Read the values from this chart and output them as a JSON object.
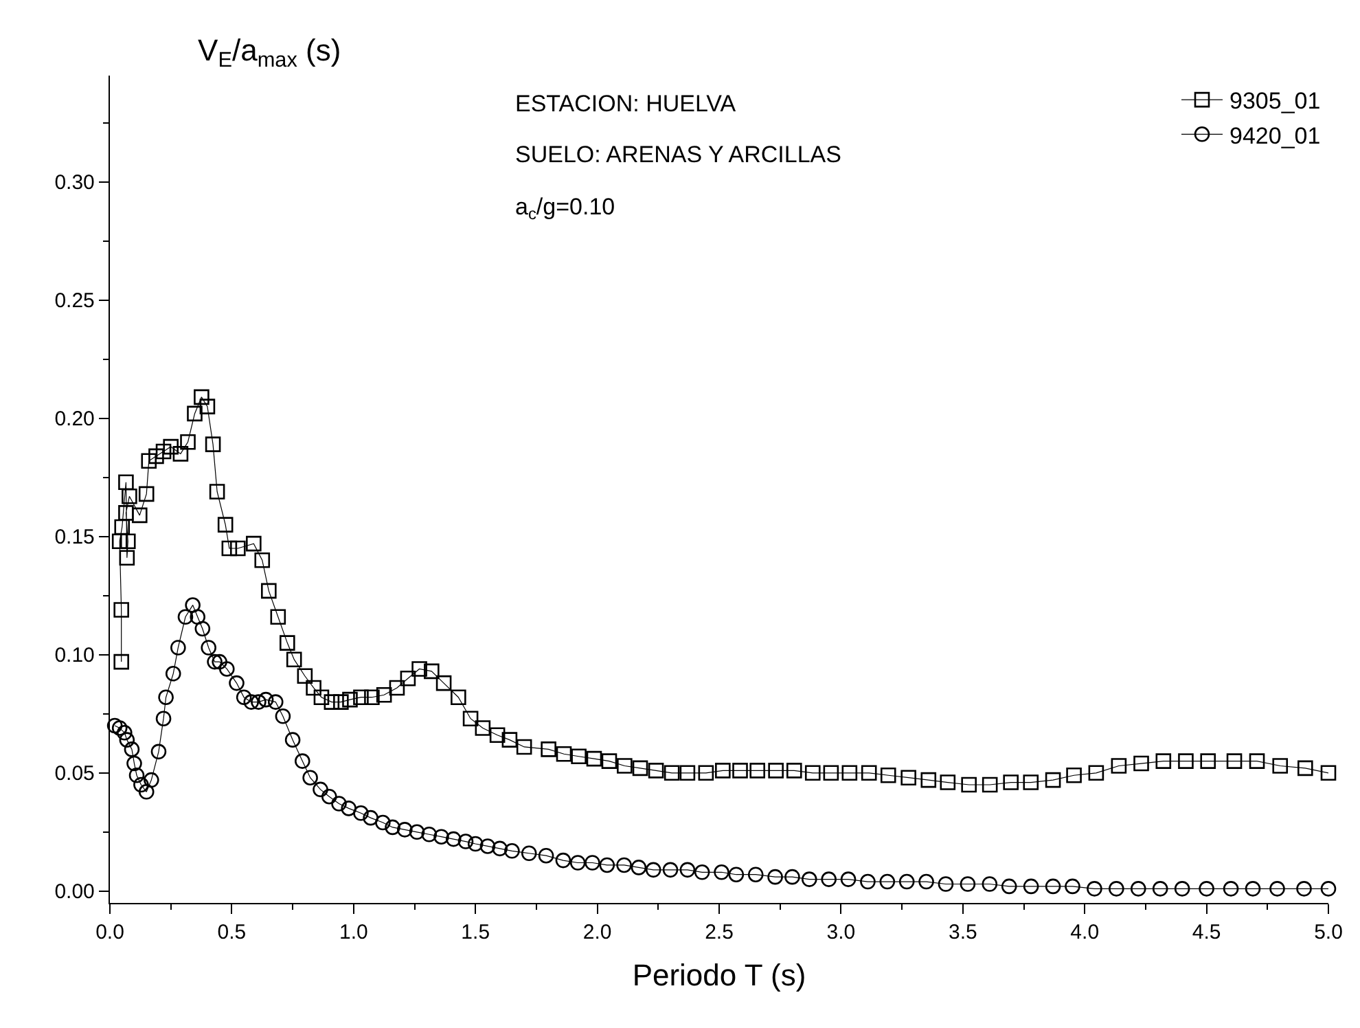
{
  "chart_data": {
    "type": "line",
    "xlabel": "Periodo T (s)",
    "ylabel": "V$_{E}$/a$_{max}$ (s)",
    "annotations": [
      "ESTACION: HUELVA",
      "SUELO: ARENAS Y ARCILLAS",
      "a$_{c}$/g=0.10"
    ],
    "xlim": [
      0,
      5.0
    ],
    "xticks": [
      {
        "value": 0,
        "label": "0.0"
      },
      0.5,
      {
        "value": 1,
        "label": "1.0"
      },
      1.5,
      {
        "value": 2,
        "label": "2.0"
      },
      2.5,
      {
        "value": 3,
        "label": "3.0"
      },
      3.5,
      {
        "value": 4,
        "label": "4.0"
      },
      4.5,
      {
        "value": 5,
        "label": "5.0"
      }
    ],
    "ylim": [
      -0.005,
      0.345
    ],
    "yticks": [
      {
        "value": 0,
        "label": "0.00"
      },
      0.05,
      {
        "value": 0.1,
        "label": "0.10"
      },
      0.15,
      {
        "value": 0.2,
        "label": "0.20"
      },
      0.25,
      {
        "value": 0.3,
        "label": "0.30"
      }
    ],
    "legend": "top right",
    "line_style": "solid",
    "series": [
      {
        "name": "9305_01",
        "color": "#000000",
        "marker": "square",
        "x": [
          0.047,
          0.047,
          0.04,
          0.05,
          0.066,
          0.07,
          0.074,
          0.066,
          0.08,
          0.122,
          0.15,
          0.16,
          0.19,
          0.22,
          0.25,
          0.29,
          0.32,
          0.348,
          0.376,
          0.4,
          0.423,
          0.44,
          0.474,
          0.49,
          0.525,
          0.59,
          0.625,
          0.652,
          0.69,
          0.728,
          0.756,
          0.8,
          0.836,
          0.868,
          0.91,
          0.948,
          0.985,
          1.03,
          1.075,
          1.125,
          1.178,
          1.223,
          1.27,
          1.32,
          1.37,
          1.43,
          1.48,
          1.53,
          1.59,
          1.64,
          1.7,
          1.8,
          1.863,
          1.924,
          1.987,
          2.049,
          2.112,
          2.176,
          2.241,
          2.306,
          2.37,
          2.446,
          2.515,
          2.586,
          2.657,
          2.733,
          2.808,
          2.884,
          2.959,
          3.035,
          3.115,
          3.194,
          3.277,
          3.359,
          3.438,
          3.525,
          3.611,
          3.697,
          3.779,
          3.87,
          3.956,
          4.047,
          4.14,
          4.232,
          4.323,
          4.415,
          4.506,
          4.614,
          4.707,
          4.802,
          4.905,
          5.0
        ],
        "values": [
          0.097,
          0.119,
          0.148,
          0.154,
          0.173,
          0.141,
          0.148,
          0.16,
          0.167,
          0.159,
          0.168,
          0.182,
          0.184,
          0.186,
          0.188,
          0.185,
          0.19,
          0.202,
          0.209,
          0.205,
          0.189,
          0.169,
          0.155,
          0.145,
          0.145,
          0.147,
          0.14,
          0.127,
          0.116,
          0.105,
          0.098,
          0.091,
          0.086,
          0.082,
          0.08,
          0.08,
          0.081,
          0.082,
          0.082,
          0.083,
          0.086,
          0.09,
          0.094,
          0.093,
          0.088,
          0.082,
          0.073,
          0.069,
          0.066,
          0.064,
          0.061,
          0.06,
          0.058,
          0.057,
          0.056,
          0.055,
          0.053,
          0.052,
          0.051,
          0.05,
          0.05,
          0.05,
          0.051,
          0.051,
          0.051,
          0.051,
          0.051,
          0.05,
          0.05,
          0.05,
          0.05,
          0.049,
          0.048,
          0.047,
          0.046,
          0.045,
          0.045,
          0.046,
          0.046,
          0.047,
          0.049,
          0.05,
          0.053,
          0.054,
          0.055,
          0.055,
          0.055,
          0.055,
          0.055,
          0.053,
          0.052,
          0.05
        ]
      },
      {
        "name": "9420_01",
        "color": "#000000",
        "marker": "circle",
        "x": [
          0.02,
          0.04,
          0.06,
          0.07,
          0.09,
          0.1,
          0.11,
          0.128,
          0.15,
          0.17,
          0.2,
          0.22,
          0.23,
          0.26,
          0.28,
          0.31,
          0.34,
          0.36,
          0.38,
          0.405,
          0.43,
          0.45,
          0.48,
          0.52,
          0.55,
          0.58,
          0.61,
          0.64,
          0.68,
          0.71,
          0.75,
          0.79,
          0.822,
          0.864,
          0.9,
          0.94,
          0.98,
          1.03,
          1.07,
          1.12,
          1.16,
          1.21,
          1.26,
          1.31,
          1.36,
          1.41,
          1.46,
          1.5,
          1.55,
          1.6,
          1.65,
          1.72,
          1.79,
          1.86,
          1.92,
          1.98,
          2.04,
          2.11,
          2.17,
          2.23,
          2.3,
          2.37,
          2.43,
          2.51,
          2.57,
          2.65,
          2.73,
          2.8,
          2.87,
          2.95,
          3.03,
          3.11,
          3.19,
          3.27,
          3.35,
          3.43,
          3.52,
          3.61,
          3.69,
          3.78,
          3.87,
          3.95,
          4.04,
          4.13,
          4.22,
          4.31,
          4.4,
          4.5,
          4.6,
          4.69,
          4.79,
          4.9,
          5.0
        ],
        "values": [
          0.07,
          0.069,
          0.067,
          0.064,
          0.06,
          0.054,
          0.049,
          0.045,
          0.042,
          0.047,
          0.059,
          0.073,
          0.082,
          0.092,
          0.103,
          0.116,
          0.121,
          0.116,
          0.111,
          0.103,
          0.097,
          0.097,
          0.094,
          0.088,
          0.082,
          0.08,
          0.08,
          0.081,
          0.08,
          0.074,
          0.064,
          0.055,
          0.048,
          0.043,
          0.04,
          0.037,
          0.035,
          0.033,
          0.031,
          0.029,
          0.027,
          0.026,
          0.025,
          0.024,
          0.023,
          0.022,
          0.021,
          0.02,
          0.019,
          0.018,
          0.017,
          0.016,
          0.015,
          0.013,
          0.012,
          0.012,
          0.011,
          0.011,
          0.01,
          0.009,
          0.009,
          0.009,
          0.008,
          0.008,
          0.007,
          0.007,
          0.006,
          0.006,
          0.005,
          0.005,
          0.005,
          0.004,
          0.004,
          0.004,
          0.004,
          0.003,
          0.003,
          0.003,
          0.002,
          0.002,
          0.002,
          0.002,
          0.001,
          0.001,
          0.001,
          0.001,
          0.001,
          0.001,
          0.001,
          0.001,
          0.001,
          0.001,
          0.001
        ]
      }
    ]
  }
}
